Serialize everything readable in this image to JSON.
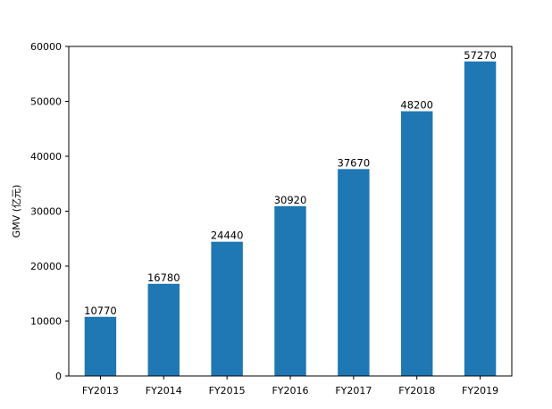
{
  "chart_data": {
    "type": "bar",
    "categories": [
      "FY2013",
      "FY2014",
      "FY2015",
      "FY2016",
      "FY2017",
      "FY2018",
      "FY2019"
    ],
    "values": [
      10770,
      16780,
      24440,
      30920,
      37670,
      48200,
      57270
    ],
    "title": "",
    "xlabel": "",
    "ylabel": "GMV (亿元)",
    "ylim": [
      0,
      60000
    ],
    "yticks": [
      0,
      10000,
      20000,
      30000,
      40000,
      50000,
      60000
    ],
    "bar_color": "#1f77b4",
    "grid": false,
    "data_labels": true
  }
}
